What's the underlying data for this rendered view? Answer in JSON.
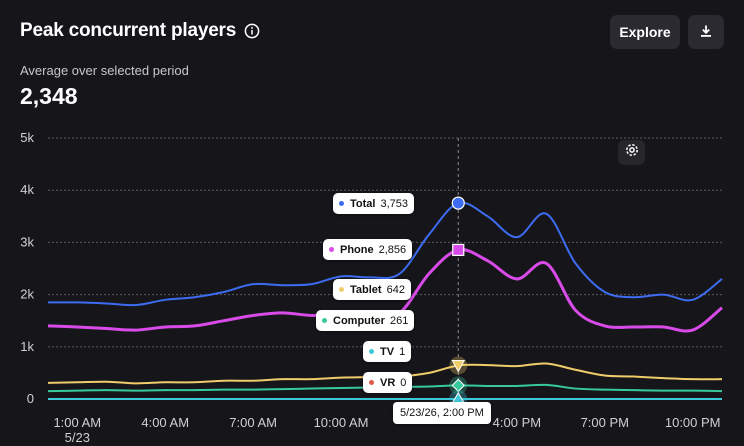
{
  "header": {
    "title": "Peak concurrent players",
    "info_icon": "info-icon",
    "explore_label": "Explore",
    "download_icon": "download-icon"
  },
  "summary": {
    "label": "Average over selected period",
    "value": "2,348"
  },
  "settings_icon": "gear-icon",
  "colors": {
    "total": "#3d6cf2",
    "phone": "#d84be8",
    "tablet": "#f0cc6a",
    "computer": "#37c99c",
    "tv": "#3cc8d8",
    "vr": "#e05a4a",
    "grid": "#5a5a62",
    "background": "#16161a"
  },
  "tooltip": {
    "date": "5/23/26, 2:00 PM",
    "items": [
      {
        "key": "total",
        "label": "Total",
        "value": "3,753"
      },
      {
        "key": "phone",
        "label": "Phone",
        "value": "2,856"
      },
      {
        "key": "tablet",
        "label": "Tablet",
        "value": "642"
      },
      {
        "key": "computer",
        "label": "Computer",
        "value": "261"
      },
      {
        "key": "tv",
        "label": "TV",
        "value": "1"
      },
      {
        "key": "vr",
        "label": "VR",
        "value": "0"
      }
    ]
  },
  "chart_data": {
    "type": "line",
    "title": "",
    "xlabel": "",
    "ylabel": "",
    "ylim": [
      0,
      5000
    ],
    "yticks": [
      "0",
      "1k",
      "2k",
      "3k",
      "4k",
      "5k"
    ],
    "grid": true,
    "x": [
      "00:00",
      "01:00",
      "02:00",
      "03:00",
      "04:00",
      "05:00",
      "06:00",
      "07:00",
      "08:00",
      "09:00",
      "10:00",
      "11:00",
      "12:00",
      "13:00",
      "14:00",
      "15:00",
      "16:00",
      "17:00",
      "18:00",
      "19:00",
      "20:00",
      "21:00",
      "22:00",
      "23:00"
    ],
    "xtick_labels": [
      {
        "x": "01:00",
        "line1": "1:00 AM",
        "line2": "5/23"
      },
      {
        "x": "04:00",
        "line1": "4:00 AM",
        "line2": ""
      },
      {
        "x": "07:00",
        "line1": "7:00 AM",
        "line2": ""
      },
      {
        "x": "10:00",
        "line1": "10:00 AM",
        "line2": ""
      },
      {
        "x": "16:00",
        "line1": "4:00 PM",
        "line2": ""
      },
      {
        "x": "19:00",
        "line1": "7:00 PM",
        "line2": ""
      },
      {
        "x": "22:00",
        "line1": "10:00 PM",
        "line2": ""
      }
    ],
    "hover_x": "14:00",
    "series": [
      {
        "key": "total",
        "name": "Total",
        "values": [
          1850,
          1850,
          1830,
          1800,
          1900,
          1950,
          2050,
          2200,
          2180,
          2200,
          2350,
          2330,
          2400,
          3150,
          3753,
          3500,
          3100,
          3550,
          2600,
          2050,
          1950,
          2000,
          1900,
          2300
        ]
      },
      {
        "key": "phone",
        "name": "Phone",
        "values": [
          1400,
          1380,
          1350,
          1320,
          1380,
          1400,
          1500,
          1600,
          1650,
          1600,
          1620,
          1580,
          1650,
          2400,
          2856,
          2650,
          2300,
          2600,
          1700,
          1400,
          1380,
          1380,
          1320,
          1750
        ]
      },
      {
        "key": "tablet",
        "name": "Tablet",
        "values": [
          310,
          320,
          330,
          300,
          320,
          320,
          350,
          350,
          380,
          380,
          410,
          420,
          430,
          500,
          642,
          650,
          630,
          680,
          560,
          450,
          430,
          400,
          380,
          380
        ]
      },
      {
        "key": "computer",
        "name": "Computer",
        "values": [
          150,
          160,
          170,
          160,
          170,
          170,
          180,
          180,
          190,
          200,
          210,
          220,
          230,
          240,
          261,
          250,
          250,
          270,
          200,
          180,
          170,
          160,
          160,
          150
        ]
      },
      {
        "key": "tv",
        "name": "TV",
        "values": [
          1,
          1,
          1,
          1,
          1,
          1,
          1,
          1,
          1,
          1,
          1,
          1,
          1,
          1,
          1,
          1,
          1,
          1,
          1,
          1,
          1,
          1,
          1,
          1
        ]
      },
      {
        "key": "vr",
        "name": "VR",
        "values": [
          0,
          0,
          0,
          0,
          0,
          0,
          0,
          0,
          0,
          0,
          0,
          0,
          0,
          0,
          0,
          0,
          0,
          0,
          0,
          0,
          0,
          0,
          0,
          0
        ]
      }
    ]
  }
}
